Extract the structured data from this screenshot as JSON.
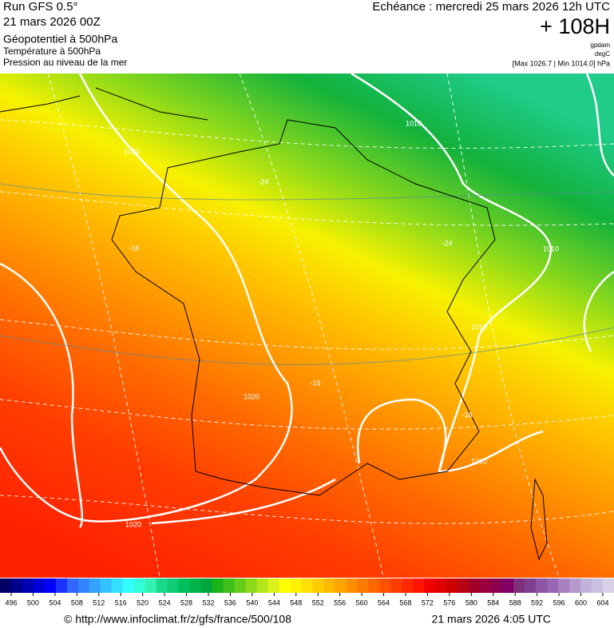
{
  "header": {
    "run": "Run GFS 0.5°",
    "run_date": "21 mars 2026 00Z",
    "title": "Géopotentiel à 500hPa",
    "subtitle1": "Température à 500hPa",
    "subtitle2": "Pression au niveau de la mer",
    "valid": "Echéance : mercredi 25 mars 2026 12h UTC",
    "lead": "+ 108H",
    "unit1": "gpdam",
    "unit2": "degC",
    "range": "[Max 1026.7 | Min 1014.0] hPa"
  },
  "map_labels": [
    "1010",
    "1020",
    "-24",
    "-24",
    "-16",
    "1010",
    "1010",
    "1020",
    "-16",
    "-18",
    "1010",
    "1020"
  ],
  "colorbar": {
    "labels": [
      496,
      500,
      504,
      508,
      512,
      516,
      520,
      524,
      528,
      532,
      536,
      540,
      544,
      548,
      552,
      556,
      560,
      564,
      568,
      572,
      576,
      580,
      584,
      588,
      592,
      596,
      600,
      604
    ],
    "colors": [
      "#000066",
      "#00008c",
      "#0000b3",
      "#0000d9",
      "#0000ff",
      "#1a33ff",
      "#3366ff",
      "#3385ff",
      "#33a3ff",
      "#33c2ff",
      "#33e0ff",
      "#33ffff",
      "#33ffd6",
      "#33f0b3",
      "#1ad98c",
      "#0dcc73",
      "#00bf5a",
      "#00b24a",
      "#00a63c",
      "#1ab31a",
      "#40bf1a",
      "#66cc1a",
      "#8cd91a",
      "#b3e61a",
      "#d9f21a",
      "#ffff00",
      "#fff200",
      "#ffe000",
      "#ffcc00",
      "#ffb800",
      "#ffa300",
      "#ff8f00",
      "#ff7a00",
      "#ff6600",
      "#ff5200",
      "#ff3d00",
      "#ff2900",
      "#ff1400",
      "#f20000",
      "#e00000",
      "#cc0000",
      "#b80014",
      "#a30029",
      "#99003d",
      "#8c0052",
      "#800066",
      "#80307a",
      "#804090",
      "#8c55a6",
      "#9966b3",
      "#a680c0",
      "#b399cc",
      "#c0b3d9",
      "#ccc0e0",
      "#d9d0e8"
    ]
  },
  "footer": {
    "url": "© http://www.infoclimat.fr/z/gfs/france/500/108",
    "generated": "21 mars 2026  4:05 UTC"
  }
}
